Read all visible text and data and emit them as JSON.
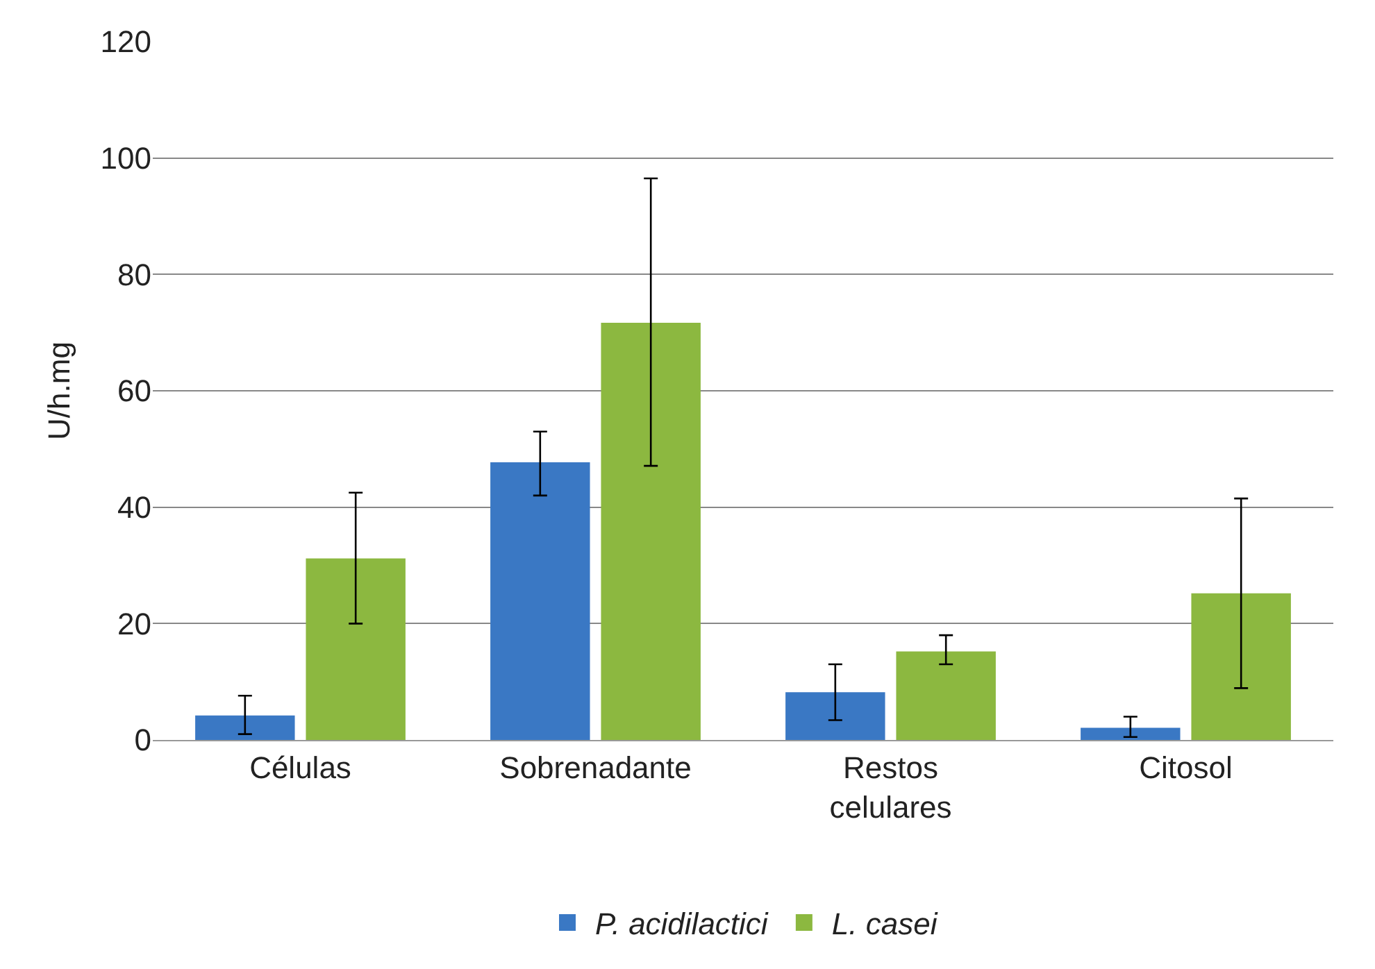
{
  "chart_data": {
    "type": "bar",
    "ylabel": "U/h.mg",
    "categories": [
      "Células",
      "Sobrenadante",
      "Restos celulares",
      "Citosol"
    ],
    "series": [
      {
        "name": "P. acidilactici",
        "color": "#3a78c4",
        "values": [
          4.2,
          47.7,
          8.2,
          2.1
        ],
        "errors": [
          [
            1.0,
            7.6
          ],
          [
            42,
            53
          ],
          [
            3.4,
            13
          ],
          [
            0.5,
            4
          ]
        ]
      },
      {
        "name": "L. casei",
        "color": "#8cb840",
        "values": [
          31.2,
          71.7,
          15.2,
          25.2
        ],
        "errors": [
          [
            20,
            42.5
          ],
          [
            47.1,
            96.5
          ],
          [
            13,
            18
          ],
          [
            8.9,
            41.5
          ]
        ]
      }
    ],
    "ylim": [
      0,
      120
    ],
    "yticks": [
      0,
      20,
      40,
      60,
      80,
      100,
      120
    ],
    "grid": "y",
    "legend": "bottom"
  }
}
